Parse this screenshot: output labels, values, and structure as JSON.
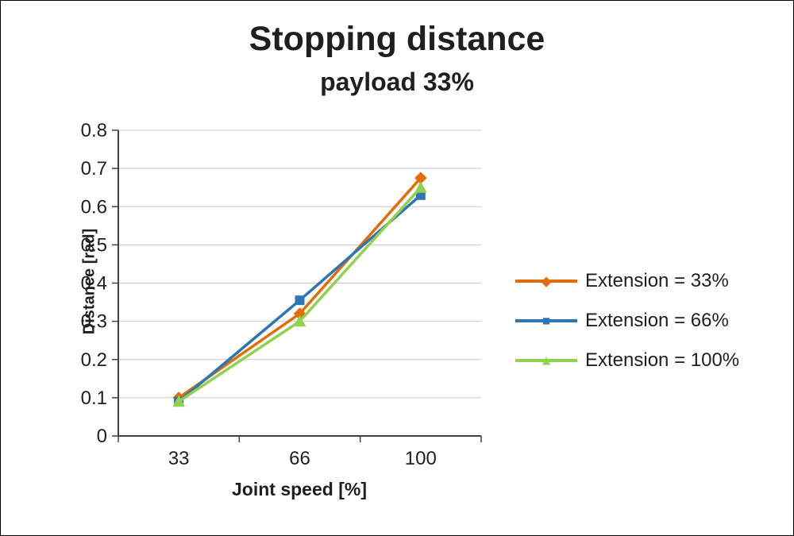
{
  "chart_data": {
    "type": "line",
    "title": "Stopping distance",
    "subtitle": "payload 33%",
    "xlabel": "Joint speed [%]",
    "ylabel": "Distance [rad]",
    "categories": [
      "33",
      "66",
      "100"
    ],
    "ylim": [
      0,
      0.8
    ],
    "ytick_step": 0.1,
    "grid": true,
    "legend_position": "right",
    "grid_color": "#c9c9c9",
    "axis_color": "#404040",
    "series": [
      {
        "name": "Extension = 33%",
        "color": "#e36c0a",
        "marker": "diamond",
        "values": [
          0.1,
          0.32,
          0.675
        ]
      },
      {
        "name": "Extension = 66%",
        "color": "#2e75b6",
        "marker": "square",
        "values": [
          0.09,
          0.355,
          0.63
        ]
      },
      {
        "name": "Extension = 100%",
        "color": "#92d050",
        "marker": "triangle",
        "values": [
          0.09,
          0.3,
          0.65
        ]
      }
    ]
  }
}
